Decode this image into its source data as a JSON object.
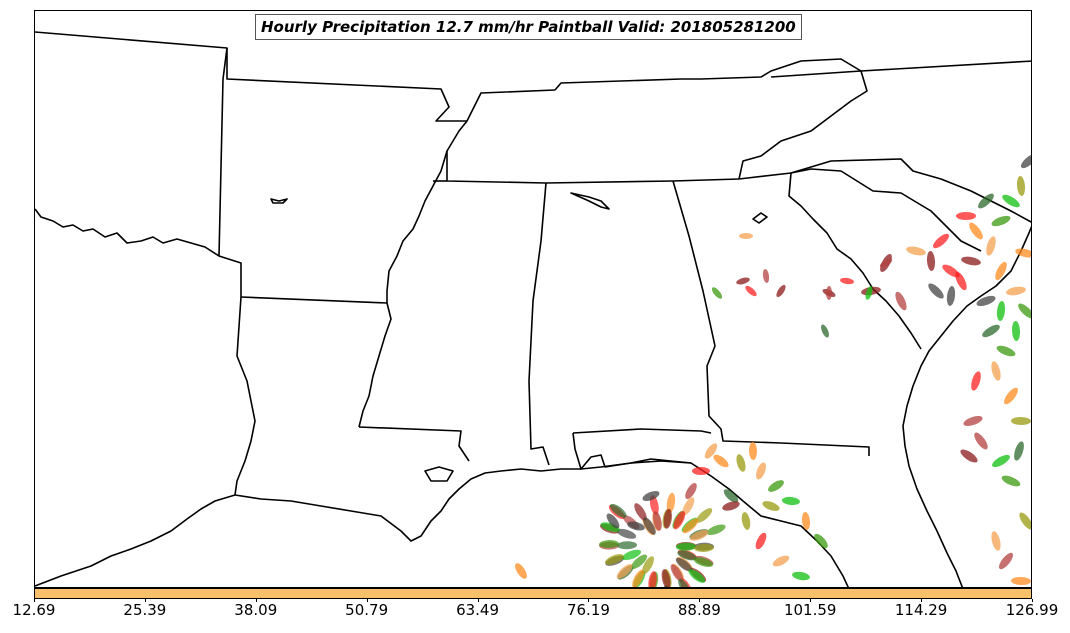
{
  "title": "Hourly Precipitation 12.7 mm/hr Paintball Valid: 201805281200",
  "colorbar": {
    "color": "#f9c06b",
    "ticks": [
      "12.69",
      "25.39",
      "38.09",
      "50.79",
      "63.49",
      "76.19",
      "88.89",
      "101.59",
      "114.29",
      "126.99"
    ]
  },
  "member_colors": [
    "#8b1a1a",
    "#ff2020",
    "#ff8c20",
    "#f4a050",
    "#9a9a10",
    "#3c9a10",
    "#10c010",
    "#2d6a2d",
    "#444444",
    "#b34040"
  ]
}
